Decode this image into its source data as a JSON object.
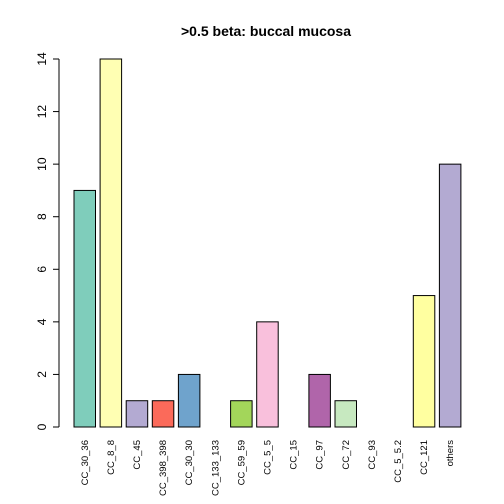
{
  "chart_data": {
    "type": "bar",
    "title": ">0.5 beta:  buccal mucosa",
    "xlabel": "",
    "ylabel": "",
    "ylim": [
      0,
      14
    ],
    "yticks": [
      0,
      2,
      4,
      6,
      8,
      10,
      12,
      14
    ],
    "categories": [
      "CC_30_36",
      "CC_8_8",
      "CC_45",
      "CC_398_398",
      "CC_30_30",
      "CC_133_133",
      "CC_59_59",
      "CC_5_5",
      "CC_15",
      "CC_97",
      "CC_72",
      "CC_93",
      "CC_5_5.2",
      "CC_121",
      "others"
    ],
    "values": [
      9,
      14,
      1,
      1,
      2,
      0,
      1,
      4,
      0,
      2,
      1,
      0,
      0,
      5,
      10
    ],
    "colors": [
      "#7fcdbb",
      "#ffffb3",
      "#b3aad2",
      "#fb6a5a",
      "#6fa3cc",
      "#f5a55e",
      "#a3d65a",
      "#f9c0dc",
      "#d9d9d9",
      "#b065aa",
      "#c7e9c0",
      "#ffed6f",
      "#8dd3c7",
      "#ffffa0",
      "#b3aad2"
    ],
    "grid": false,
    "legend": "none"
  }
}
